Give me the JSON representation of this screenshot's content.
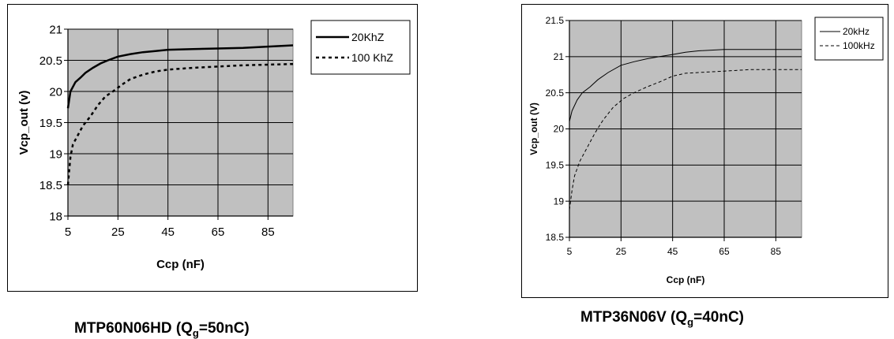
{
  "chart_data": [
    {
      "type": "line",
      "title": "",
      "xlabel": "Ccp (nF)",
      "ylabel": "Vcp_out (v)",
      "xlim": [
        5,
        95
      ],
      "ylim": [
        18,
        21
      ],
      "xticks": [
        "5",
        "25",
        "45",
        "65",
        "85"
      ],
      "yticks": [
        "18",
        "18.5",
        "19",
        "19.5",
        "20",
        "20.5",
        "21"
      ],
      "grid": true,
      "plot_background": "#c0c0c0",
      "legend_position": "right",
      "series": [
        {
          "name": "20KhZ",
          "style": "solid",
          "points": [
            [
              5,
              19.73
            ],
            [
              6,
              20.0
            ],
            [
              8,
              20.15
            ],
            [
              10,
              20.22
            ],
            [
              12,
              20.3
            ],
            [
              15,
              20.38
            ],
            [
              18,
              20.45
            ],
            [
              21,
              20.5
            ],
            [
              25,
              20.56
            ],
            [
              30,
              20.6
            ],
            [
              35,
              20.63
            ],
            [
              40,
              20.65
            ],
            [
              45,
              20.67
            ],
            [
              55,
              20.68
            ],
            [
              65,
              20.69
            ],
            [
              75,
              20.7
            ],
            [
              85,
              20.72
            ],
            [
              95,
              20.74
            ]
          ]
        },
        {
          "name": "100 KhZ",
          "style": "dotted",
          "points": [
            [
              5,
              18.5
            ],
            [
              6,
              18.95
            ],
            [
              7,
              19.15
            ],
            [
              9,
              19.3
            ],
            [
              11,
              19.45
            ],
            [
              14,
              19.6
            ],
            [
              17,
              19.78
            ],
            [
              20,
              19.92
            ],
            [
              23,
              20.0
            ],
            [
              27,
              20.12
            ],
            [
              30,
              20.2
            ],
            [
              35,
              20.27
            ],
            [
              40,
              20.32
            ],
            [
              45,
              20.35
            ],
            [
              55,
              20.38
            ],
            [
              65,
              20.4
            ],
            [
              75,
              20.42
            ],
            [
              85,
              20.43
            ],
            [
              95,
              20.44
            ]
          ]
        }
      ]
    },
    {
      "type": "line",
      "title": "",
      "xlabel": "Ccp (nF)",
      "ylabel": "Vcp_out (V)",
      "xlim": [
        5,
        95
      ],
      "ylim": [
        18.5,
        21.5
      ],
      "xticks": [
        "5",
        "25",
        "45",
        "65",
        "85"
      ],
      "yticks": [
        "18.5",
        "19",
        "19.5",
        "20",
        "20.5",
        "21",
        "21.5"
      ],
      "grid": true,
      "plot_background": "#c0c0c0",
      "legend_position": "right",
      "series": [
        {
          "name": "20kHz",
          "style": "solid",
          "points": [
            [
              5,
              20.1
            ],
            [
              6,
              20.25
            ],
            [
              8,
              20.4
            ],
            [
              10,
              20.5
            ],
            [
              13,
              20.58
            ],
            [
              16,
              20.68
            ],
            [
              20,
              20.78
            ],
            [
              25,
              20.88
            ],
            [
              30,
              20.93
            ],
            [
              35,
              20.97
            ],
            [
              40,
              21.0
            ],
            [
              45,
              21.03
            ],
            [
              50,
              21.06
            ],
            [
              55,
              21.08
            ],
            [
              65,
              21.1
            ],
            [
              75,
              21.1
            ],
            [
              85,
              21.1
            ],
            [
              95,
              21.1
            ]
          ]
        },
        {
          "name": "100kHz",
          "style": "dashed",
          "points": [
            [
              5,
              18.88
            ],
            [
              6,
              19.15
            ],
            [
              7,
              19.35
            ],
            [
              9,
              19.55
            ],
            [
              12,
              19.75
            ],
            [
              15,
              19.95
            ],
            [
              18,
              20.12
            ],
            [
              22,
              20.3
            ],
            [
              26,
              20.42
            ],
            [
              30,
              20.5
            ],
            [
              35,
              20.58
            ],
            [
              40,
              20.65
            ],
            [
              45,
              20.73
            ],
            [
              50,
              20.77
            ],
            [
              55,
              20.78
            ],
            [
              65,
              20.8
            ],
            [
              75,
              20.82
            ],
            [
              85,
              20.82
            ],
            [
              95,
              20.82
            ]
          ]
        }
      ]
    }
  ],
  "captions": [
    {
      "main": "MTP60N06HD (Q",
      "sub": "g",
      "tail": "=50nC)"
    },
    {
      "main": "MTP36N06V (Q",
      "sub": "g",
      "tail": "=40nC)"
    }
  ]
}
